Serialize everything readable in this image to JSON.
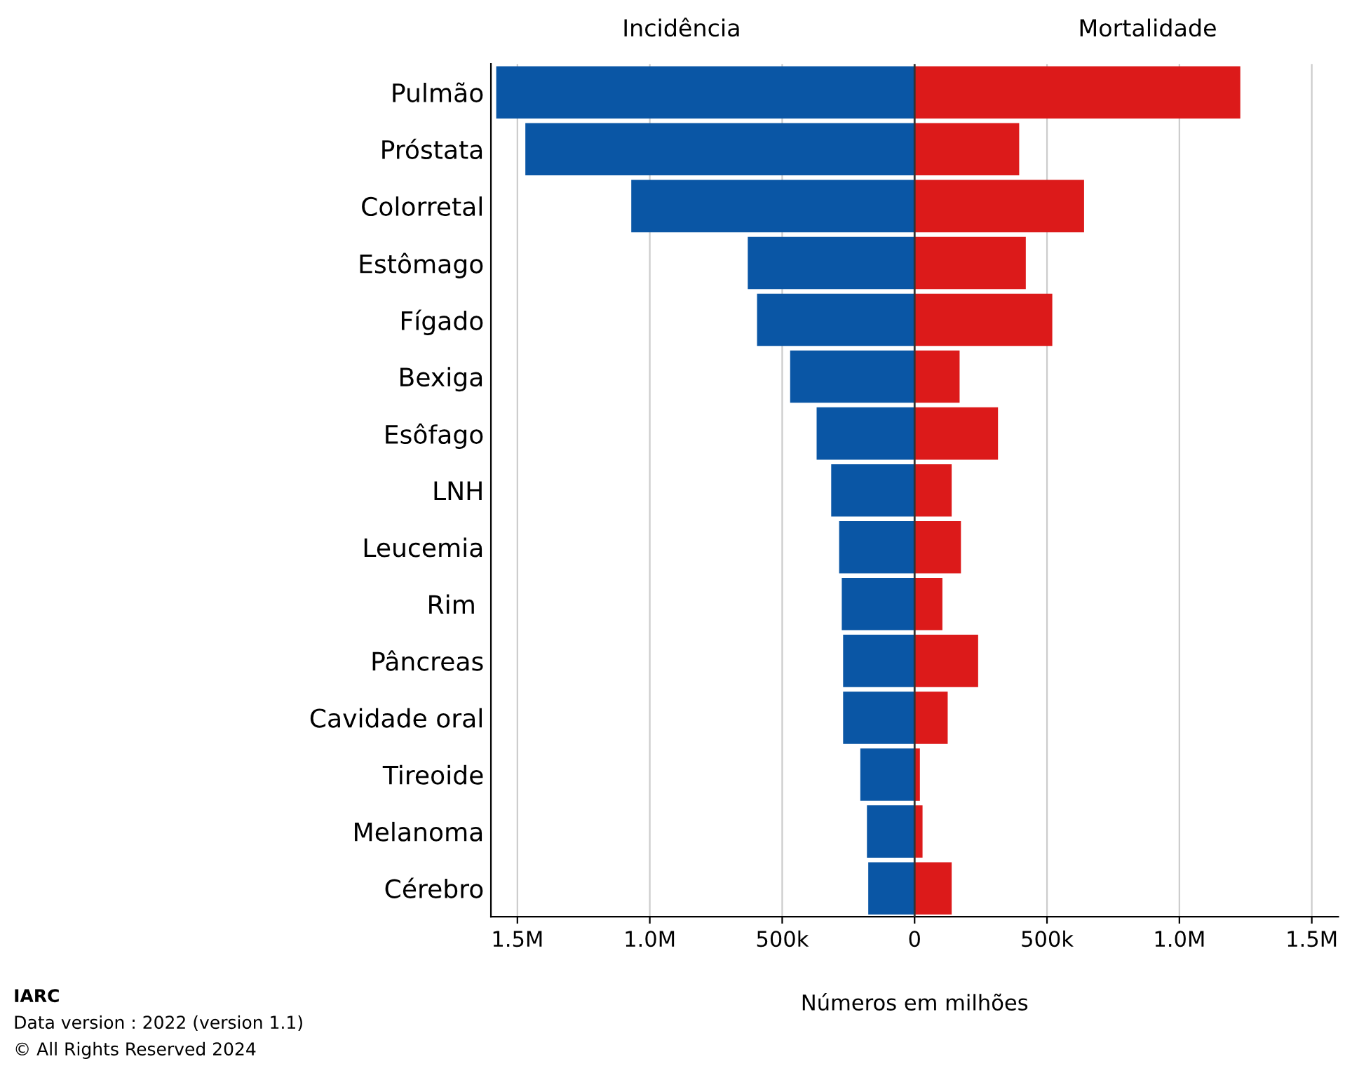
{
  "chart_data": {
    "type": "bar",
    "orientation": "horizontal",
    "stacked": true,
    "xlabel": "Números em milhões",
    "categories": [
      "Pulmão",
      "Próstata",
      "Colorretal",
      "Estômago",
      "Fígado",
      "Bexiga",
      "Esôfago",
      "LNH",
      "Leucemia",
      "Rim ",
      "Pâncreas",
      "Cavidade oral",
      "Tireoide",
      "Melanoma",
      "Cérebro"
    ],
    "series": [
      {
        "name": "Incidência",
        "color": "#0a56a5",
        "values": [
          -1580000,
          -1470000,
          -1070000,
          -630000,
          -595000,
          -470000,
          -370000,
          -315000,
          -285000,
          -275000,
          -270000,
          -270000,
          -205000,
          -180000,
          -175000
        ]
      },
      {
        "name": "Mortalidade",
        "color": "#dc1a1a",
        "values": [
          1230000,
          395000,
          640000,
          420000,
          520000,
          170000,
          315000,
          140000,
          175000,
          105000,
          240000,
          125000,
          20000,
          30000,
          140000
        ]
      }
    ],
    "xlim": [
      -1600000,
      1600000
    ],
    "xticks": [
      {
        "value": -1500000,
        "label": "1.5M"
      },
      {
        "value": -1000000,
        "label": "1.0M"
      },
      {
        "value": -500000,
        "label": "500k"
      },
      0,
      {
        "value": 500000,
        "label": "500k"
      },
      {
        "value": 1000000,
        "label": "1.0M"
      },
      {
        "value": 1500000,
        "label": "1.5M"
      }
    ],
    "grid": "x",
    "annotations": [
      "IARC",
      "Data version : 2022 (version 1.1)",
      "© All Rights Reserved 2024"
    ]
  }
}
